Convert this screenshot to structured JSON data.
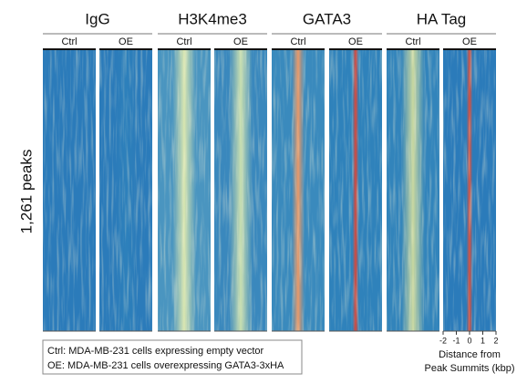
{
  "panel_groups": [
    {
      "title": "IgG",
      "conditions": [
        "Ctrl",
        "OE"
      ]
    },
    {
      "title": "H3K4me3",
      "conditions": [
        "Ctrl",
        "OE"
      ]
    },
    {
      "title": "GATA3",
      "conditions": [
        "Ctrl",
        "OE"
      ]
    },
    {
      "title": "HA Tag",
      "conditions": [
        "Ctrl",
        "OE"
      ]
    }
  ],
  "y_label": "1,261 peaks",
  "x_axis": {
    "ticks": [
      -2,
      -1,
      0,
      1,
      2
    ],
    "label_lines": [
      "Distance from",
      "Peak Summits (kbp)"
    ]
  },
  "legend": [
    "Ctrl: MDA-MB-231 cells expressing empty vector",
    "OE: MDA-MB-231 cells overexpressing GATA3-3xHA"
  ]
}
